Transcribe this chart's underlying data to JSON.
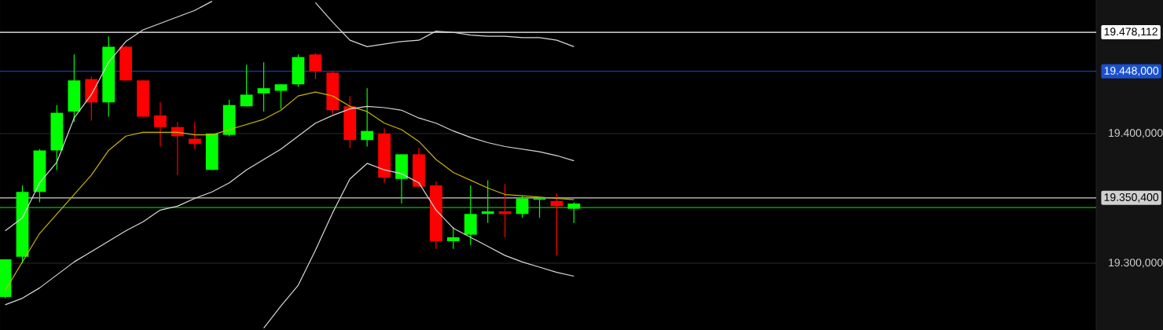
{
  "chart_data": {
    "type": "candlestick",
    "categories": [
      null,
      null,
      null,
      null,
      null,
      null,
      null,
      null,
      null,
      null,
      null,
      null,
      null,
      null,
      null,
      null,
      null,
      null,
      null,
      null,
      null,
      null,
      null,
      null,
      null,
      null,
      null,
      null,
      null,
      null,
      null,
      null,
      null,
      null
    ],
    "ohlc": [
      [
        19274,
        19303,
        19273,
        19303
      ],
      [
        19305,
        19360,
        19300,
        19355
      ],
      [
        19355,
        19388,
        19347,
        19387
      ],
      [
        19387,
        19422,
        19372,
        19416
      ],
      [
        19417,
        19461,
        19409,
        19441
      ],
      [
        19442,
        19444,
        19410,
        19424
      ],
      [
        19424,
        19475,
        19413,
        19467
      ],
      [
        19467,
        19468,
        19441,
        19441
      ],
      [
        19441,
        19441,
        19413,
        19413
      ],
      [
        19414,
        19424,
        19390,
        19405
      ],
      [
        19405,
        19409,
        19368,
        19398
      ],
      [
        19396,
        19409,
        19388,
        19392
      ],
      [
        19372,
        19400,
        19372,
        19400
      ],
      [
        19399,
        19426,
        19398,
        19422
      ],
      [
        19421,
        19453,
        19421,
        19430
      ],
      [
        19431,
        19455,
        19417,
        19435
      ],
      [
        19433,
        19438,
        19419,
        19438
      ],
      [
        19438,
        19461,
        19436,
        19459
      ],
      [
        19461,
        19462,
        19442,
        19448
      ],
      [
        19447,
        19448,
        19415,
        19418
      ],
      [
        19421,
        19429,
        19389,
        19395
      ],
      [
        19395,
        19435,
        19390,
        19402
      ],
      [
        19400,
        19404,
        19362,
        19366
      ],
      [
        19365,
        19384,
        19346,
        19384
      ],
      [
        19384,
        19389,
        19359,
        19359
      ],
      [
        19360,
        19363,
        19311,
        19317
      ],
      [
        19317,
        19328,
        19311,
        19320
      ],
      [
        19322,
        19360,
        19314,
        19338
      ],
      [
        19338,
        19364,
        19331,
        19340
      ],
      [
        19340,
        19361,
        19320,
        19338
      ],
      [
        19338,
        19352,
        19335,
        19350
      ],
      [
        19349,
        19350,
        19335,
        19350
      ],
      [
        19348,
        19354,
        19306,
        19344
      ],
      [
        19342,
        19347,
        19331,
        19346
      ]
    ],
    "colors": [
      "#00ff00",
      "#00ff00",
      "#00ff00",
      "#00ff00",
      "#00ff00",
      "#ff0000",
      "#00ff00",
      "#ff0000",
      "#ff0000",
      "#ff0000",
      "#ff0000",
      "#ff0000",
      "#00ff00",
      "#00ff00",
      "#00ff00",
      "#00ff00",
      "#00ff00",
      "#00ff00",
      "#ff0000",
      "#ff0000",
      "#ff0000",
      "#00ff00",
      "#ff0000",
      "#00ff00",
      "#ff0000",
      "#ff0000",
      "#00ff00",
      "#00ff00",
      "#00ff00",
      "#ff0000",
      "#00ff00",
      "#00ff00",
      "#ff0000",
      "#00ff00"
    ],
    "series": [
      {
        "type": "line",
        "color": "#c8b400",
        "values": [
          19279,
          19301,
          19323,
          19338,
          19353,
          19368,
          19387,
          19398,
          19401,
          19401,
          19401,
          19399,
          19399,
          19403,
          19407,
          19411,
          19418,
          19429,
          19432,
          19429,
          19421,
          19417,
          19408,
          19403,
          19394,
          19380,
          19370,
          19364,
          19358,
          19353,
          19352,
          19351,
          19350,
          19349
        ]
      },
      {
        "type": "line",
        "color": "#d8d8d8",
        "values": [
          19325,
          19335,
          19362,
          19378,
          19412,
          19430,
          19455,
          19471,
          19480,
          19485,
          19490,
          19495,
          19502,
          null,
          null,
          null,
          null,
          null,
          19501,
          19486,
          19472,
          19467,
          19469,
          19471,
          19472,
          19479,
          19478,
          19476,
          19475,
          19475,
          19474,
          19474,
          19472,
          19467
        ]
      },
      {
        "type": "line",
        "color": "#d8d8d8",
        "values": [
          19268,
          19273,
          19281,
          19291,
          19301,
          19309,
          19317,
          19325,
          19332,
          19341,
          19344,
          19350,
          19355,
          19362,
          19372,
          19380,
          19388,
          19398,
          19408,
          19414,
          19419,
          19421,
          19420,
          19418,
          19412,
          19408,
          19402,
          19397,
          19393,
          19390,
          19388,
          19386,
          19383,
          19379
        ]
      },
      {
        "type": "line",
        "color": "#d8d8d8",
        "values": [
          null,
          null,
          null,
          null,
          null,
          null,
          null,
          null,
          null,
          null,
          null,
          null,
          null,
          null,
          null,
          19250,
          19267,
          19283,
          19310,
          19339,
          19365,
          19377,
          19372,
          19369,
          19362,
          19341,
          19327,
          19320,
          19313,
          19306,
          19301,
          19297,
          19293,
          19290
        ]
      }
    ],
    "ylim": [
      19248.5,
      19503
    ],
    "yticks": [
      {
        "value": 19300,
        "label": "19.300,000"
      },
      {
        "value": 19400,
        "label": "19.400,000"
      }
    ],
    "grid": "y",
    "tick_labels": "y",
    "ref_lines": [
      {
        "axis": "y",
        "value": 19478.112,
        "label": "19.478,112",
        "color": "#ffffff"
      },
      {
        "axis": "y",
        "value": 19448,
        "label": "19.448,000",
        "color": "#1a50d0"
      },
      {
        "axis": "y",
        "value": 19350.4,
        "label": "19.350,400",
        "color": "#d0d0d0"
      },
      {
        "axis": "y",
        "value": 19343,
        "color": "#00c000"
      }
    ]
  }
}
